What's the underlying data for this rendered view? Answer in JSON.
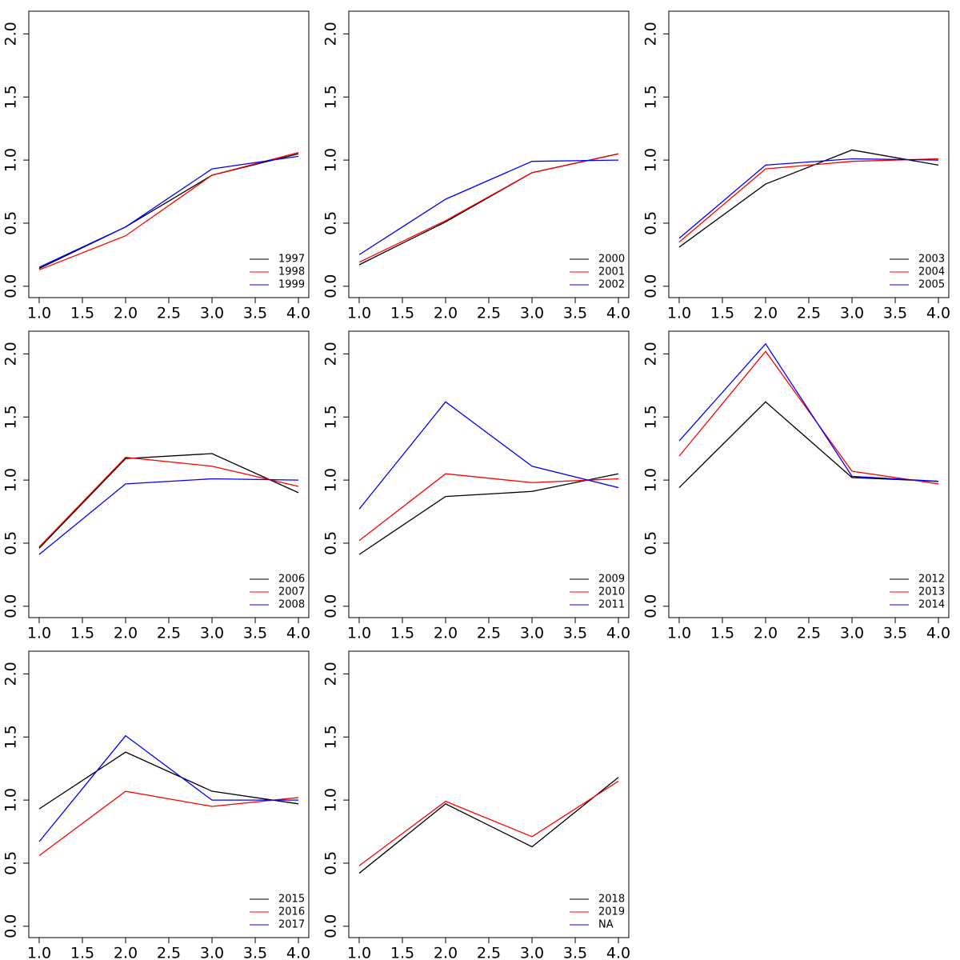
{
  "chart_data": [
    {
      "type": "line",
      "x": [
        1,
        2,
        3,
        4
      ],
      "xlim": [
        0.88,
        4.12
      ],
      "ylim": [
        -0.09,
        2.18
      ],
      "xticks": [
        {
          "value": 1,
          "label": "1.0"
        },
        {
          "value": 1.5,
          "label": "1.5"
        },
        {
          "value": 2,
          "label": "2.0"
        },
        {
          "value": 2.5,
          "label": "2.5"
        },
        {
          "value": 3,
          "label": "3.0"
        },
        {
          "value": 3.5,
          "label": "3.5"
        },
        {
          "value": 4,
          "label": "4.0"
        }
      ],
      "yticks": [
        {
          "value": 0,
          "label": "0.0"
        },
        {
          "value": 0.5,
          "label": "0.5"
        },
        {
          "value": 1,
          "label": "1.0"
        },
        {
          "value": 1.5,
          "label": "1.5"
        },
        {
          "value": 2,
          "label": "2.0"
        }
      ],
      "legend": "bottom-right",
      "series": [
        {
          "name": "1997",
          "color": "#000000",
          "values": [
            0.14,
            0.47,
            0.88,
            1.05
          ]
        },
        {
          "name": "1998",
          "color": "#ff0000",
          "values": [
            0.13,
            0.4,
            0.88,
            1.06
          ]
        },
        {
          "name": "1999",
          "color": "#0000ff",
          "values": [
            0.15,
            0.47,
            0.93,
            1.03
          ]
        }
      ]
    },
    {
      "type": "line",
      "x": [
        1,
        2,
        3,
        4
      ],
      "xlim": [
        0.88,
        4.12
      ],
      "ylim": [
        -0.09,
        2.18
      ],
      "xticks": [
        {
          "value": 1,
          "label": "1.0"
        },
        {
          "value": 1.5,
          "label": "1.5"
        },
        {
          "value": 2,
          "label": "2.0"
        },
        {
          "value": 2.5,
          "label": "2.5"
        },
        {
          "value": 3,
          "label": "3.0"
        },
        {
          "value": 3.5,
          "label": "3.5"
        },
        {
          "value": 4,
          "label": "4.0"
        }
      ],
      "yticks": [
        {
          "value": 0,
          "label": "0.0"
        },
        {
          "value": 0.5,
          "label": "0.5"
        },
        {
          "value": 1,
          "label": "1.0"
        },
        {
          "value": 1.5,
          "label": "1.5"
        },
        {
          "value": 2,
          "label": "2.0"
        }
      ],
      "legend": "bottom-right",
      "series": [
        {
          "name": "2000",
          "color": "#000000",
          "values": [
            0.17,
            0.51,
            0.9,
            1.05
          ]
        },
        {
          "name": "2001",
          "color": "#ff0000",
          "values": [
            0.19,
            0.52,
            0.9,
            1.05
          ]
        },
        {
          "name": "2002",
          "color": "#0000ff",
          "values": [
            0.25,
            0.69,
            0.99,
            1.0
          ]
        }
      ]
    },
    {
      "type": "line",
      "x": [
        1,
        2,
        3,
        4
      ],
      "xlim": [
        0.88,
        4.12
      ],
      "ylim": [
        -0.09,
        2.18
      ],
      "xticks": [
        {
          "value": 1,
          "label": "1.0"
        },
        {
          "value": 1.5,
          "label": "1.5"
        },
        {
          "value": 2,
          "label": "2.0"
        },
        {
          "value": 2.5,
          "label": "2.5"
        },
        {
          "value": 3,
          "label": "3.0"
        },
        {
          "value": 3.5,
          "label": "3.5"
        },
        {
          "value": 4,
          "label": "4.0"
        }
      ],
      "yticks": [
        {
          "value": 0,
          "label": "0.0"
        },
        {
          "value": 0.5,
          "label": "0.5"
        },
        {
          "value": 1,
          "label": "1.0"
        },
        {
          "value": 1.5,
          "label": "1.5"
        },
        {
          "value": 2,
          "label": "2.0"
        }
      ],
      "legend": "bottom-right",
      "series": [
        {
          "name": "2003",
          "color": "#000000",
          "values": [
            0.31,
            0.81,
            1.08,
            0.96
          ]
        },
        {
          "name": "2004",
          "color": "#ff0000",
          "values": [
            0.35,
            0.93,
            0.99,
            1.01
          ]
        },
        {
          "name": "2005",
          "color": "#0000ff",
          "values": [
            0.38,
            0.96,
            1.01,
            1.0
          ]
        }
      ]
    },
    {
      "type": "line",
      "x": [
        1,
        2,
        3,
        4
      ],
      "xlim": [
        0.88,
        4.12
      ],
      "ylim": [
        -0.09,
        2.18
      ],
      "xticks": [
        {
          "value": 1,
          "label": "1.0"
        },
        {
          "value": 1.5,
          "label": "1.5"
        },
        {
          "value": 2,
          "label": "2.0"
        },
        {
          "value": 2.5,
          "label": "2.5"
        },
        {
          "value": 3,
          "label": "3.0"
        },
        {
          "value": 3.5,
          "label": "3.5"
        },
        {
          "value": 4,
          "label": "4.0"
        }
      ],
      "yticks": [
        {
          "value": 0,
          "label": "0.0"
        },
        {
          "value": 0.5,
          "label": "0.5"
        },
        {
          "value": 1,
          "label": "1.0"
        },
        {
          "value": 1.5,
          "label": "1.5"
        },
        {
          "value": 2,
          "label": "2.0"
        }
      ],
      "legend": "bottom-right",
      "series": [
        {
          "name": "2006",
          "color": "#000000",
          "values": [
            0.46,
            1.17,
            1.21,
            0.9
          ]
        },
        {
          "name": "2007",
          "color": "#ff0000",
          "values": [
            0.47,
            1.18,
            1.11,
            0.95
          ]
        },
        {
          "name": "2008",
          "color": "#0000ff",
          "values": [
            0.41,
            0.97,
            1.01,
            1.0
          ]
        }
      ]
    },
    {
      "type": "line",
      "x": [
        1,
        2,
        3,
        4
      ],
      "xlim": [
        0.88,
        4.12
      ],
      "ylim": [
        -0.09,
        2.18
      ],
      "xticks": [
        {
          "value": 1,
          "label": "1.0"
        },
        {
          "value": 1.5,
          "label": "1.5"
        },
        {
          "value": 2,
          "label": "2.0"
        },
        {
          "value": 2.5,
          "label": "2.5"
        },
        {
          "value": 3,
          "label": "3.0"
        },
        {
          "value": 3.5,
          "label": "3.5"
        },
        {
          "value": 4,
          "label": "4.0"
        }
      ],
      "yticks": [
        {
          "value": 0,
          "label": "0.0"
        },
        {
          "value": 0.5,
          "label": "0.5"
        },
        {
          "value": 1,
          "label": "1.0"
        },
        {
          "value": 1.5,
          "label": "1.5"
        },
        {
          "value": 2,
          "label": "2.0"
        }
      ],
      "legend": "bottom-right",
      "series": [
        {
          "name": "2009",
          "color": "#000000",
          "values": [
            0.41,
            0.87,
            0.91,
            1.05
          ]
        },
        {
          "name": "2010",
          "color": "#ff0000",
          "values": [
            0.52,
            1.05,
            0.98,
            1.01
          ]
        },
        {
          "name": "2011",
          "color": "#0000ff",
          "values": [
            0.77,
            1.62,
            1.11,
            0.94
          ]
        }
      ]
    },
    {
      "type": "line",
      "x": [
        1,
        2,
        3,
        4
      ],
      "xlim": [
        0.88,
        4.12
      ],
      "ylim": [
        -0.09,
        2.18
      ],
      "xticks": [
        {
          "value": 1,
          "label": "1.0"
        },
        {
          "value": 1.5,
          "label": "1.5"
        },
        {
          "value": 2,
          "label": "2.0"
        },
        {
          "value": 2.5,
          "label": "2.5"
        },
        {
          "value": 3,
          "label": "3.0"
        },
        {
          "value": 3.5,
          "label": "3.5"
        },
        {
          "value": 4,
          "label": "4.0"
        }
      ],
      "yticks": [
        {
          "value": 0,
          "label": "0.0"
        },
        {
          "value": 0.5,
          "label": "0.5"
        },
        {
          "value": 1,
          "label": "1.0"
        },
        {
          "value": 1.5,
          "label": "1.5"
        },
        {
          "value": 2,
          "label": "2.0"
        }
      ],
      "legend": "bottom-right",
      "series": [
        {
          "name": "2012",
          "color": "#000000",
          "values": [
            0.94,
            1.62,
            1.02,
            0.99
          ]
        },
        {
          "name": "2013",
          "color": "#ff0000",
          "values": [
            1.19,
            2.02,
            1.07,
            0.97
          ]
        },
        {
          "name": "2014",
          "color": "#0000ff",
          "values": [
            1.31,
            2.08,
            1.03,
            0.99
          ]
        }
      ]
    },
    {
      "type": "line",
      "x": [
        1,
        2,
        3,
        4
      ],
      "xlim": [
        0.88,
        4.12
      ],
      "ylim": [
        -0.09,
        2.18
      ],
      "xticks": [
        {
          "value": 1,
          "label": "1.0"
        },
        {
          "value": 1.5,
          "label": "1.5"
        },
        {
          "value": 2,
          "label": "2.0"
        },
        {
          "value": 2.5,
          "label": "2.5"
        },
        {
          "value": 3,
          "label": "3.0"
        },
        {
          "value": 3.5,
          "label": "3.5"
        },
        {
          "value": 4,
          "label": "4.0"
        }
      ],
      "yticks": [
        {
          "value": 0,
          "label": "0.0"
        },
        {
          "value": 0.5,
          "label": "0.5"
        },
        {
          "value": 1,
          "label": "1.0"
        },
        {
          "value": 1.5,
          "label": "1.5"
        },
        {
          "value": 2,
          "label": "2.0"
        }
      ],
      "legend": "bottom-right",
      "series": [
        {
          "name": "2015",
          "color": "#000000",
          "values": [
            0.93,
            1.38,
            1.07,
            0.97
          ]
        },
        {
          "name": "2016",
          "color": "#ff0000",
          "values": [
            0.56,
            1.07,
            0.95,
            1.02
          ]
        },
        {
          "name": "2017",
          "color": "#0000ff",
          "values": [
            0.67,
            1.51,
            1.0,
            1.0
          ]
        }
      ]
    },
    {
      "type": "line",
      "x": [
        1,
        2,
        3,
        4
      ],
      "xlim": [
        0.88,
        4.12
      ],
      "ylim": [
        -0.09,
        2.18
      ],
      "xticks": [
        {
          "value": 1,
          "label": "1.0"
        },
        {
          "value": 1.5,
          "label": "1.5"
        },
        {
          "value": 2,
          "label": "2.0"
        },
        {
          "value": 2.5,
          "label": "2.5"
        },
        {
          "value": 3,
          "label": "3.0"
        },
        {
          "value": 3.5,
          "label": "3.5"
        },
        {
          "value": 4,
          "label": "4.0"
        }
      ],
      "yticks": [
        {
          "value": 0,
          "label": "0.0"
        },
        {
          "value": 0.5,
          "label": "0.5"
        },
        {
          "value": 1,
          "label": "1.0"
        },
        {
          "value": 1.5,
          "label": "1.5"
        },
        {
          "value": 2,
          "label": "2.0"
        }
      ],
      "legend": "bottom-right",
      "series": [
        {
          "name": "2018",
          "color": "#000000",
          "values": [
            0.42,
            0.97,
            0.63,
            1.18
          ]
        },
        {
          "name": "2019",
          "color": "#ff0000",
          "values": [
            0.48,
            0.99,
            0.71,
            1.15
          ]
        },
        {
          "name": "NA",
          "color": "#0000ff",
          "values": [
            null,
            null,
            null,
            null
          ]
        }
      ]
    }
  ]
}
